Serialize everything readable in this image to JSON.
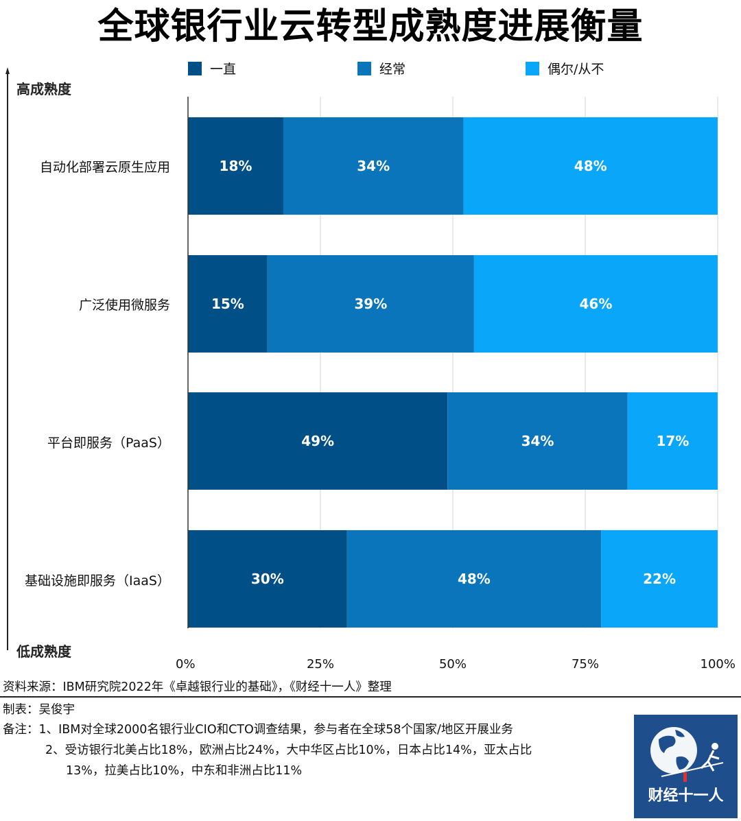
{
  "title": "全球银行业云转型成熟度进展衡量",
  "legend": [
    {
      "label": "一直",
      "color": "#004f86"
    },
    {
      "label": "经常",
      "color": "#0a75bb"
    },
    {
      "label": "偶尔/从不",
      "color": "#0aa6f9"
    }
  ],
  "maturity": {
    "high": "高成熟度",
    "low": "低成熟度"
  },
  "chart_data": {
    "type": "bar",
    "orientation": "horizontal",
    "stacked": true,
    "categories": [
      "自动化部署云原生应用",
      "广泛使用微服务",
      "平台即服务（PaaS）",
      "基础设施即服务（IaaS）"
    ],
    "series": [
      {
        "name": "一直",
        "values": [
          18,
          15,
          49,
          30
        ],
        "color": "#004f86"
      },
      {
        "name": "经常",
        "values": [
          34,
          39,
          34,
          48
        ],
        "color": "#0a75bb"
      },
      {
        "name": "偶尔/从不",
        "values": [
          48,
          46,
          17,
          22
        ],
        "color": "#0aa6f9"
      }
    ],
    "data_labels": [
      [
        "18%",
        "34%",
        "48%"
      ],
      [
        "15%",
        "39%",
        "46%"
      ],
      [
        "49%",
        "34%",
        "17%"
      ],
      [
        "30%",
        "48%",
        "22%"
      ]
    ],
    "x_ticks": [
      "0%",
      "25%",
      "50%",
      "75%",
      "100%"
    ],
    "xlim": [
      0,
      100
    ],
    "grid": true,
    "legend_position": "top"
  },
  "footer": {
    "source": "资料来源：IBM研究院2022年《卓越银行业的基础》，《财经十一人》整理",
    "author": "制表：吴俊宇",
    "note1": "备注：1、IBM对全球2000名银行业CIO和CTO调查结果，参与者在全球58个国家/地区开展业务",
    "note2": "2、受访银行北美占比18%，欧洲占比24%，大中华区占比10%，日本占比14%，亚太占比",
    "note3": "13%，拉美占比10%，中东和非洲占比11%"
  },
  "logo": {
    "text": "财经十一人"
  }
}
